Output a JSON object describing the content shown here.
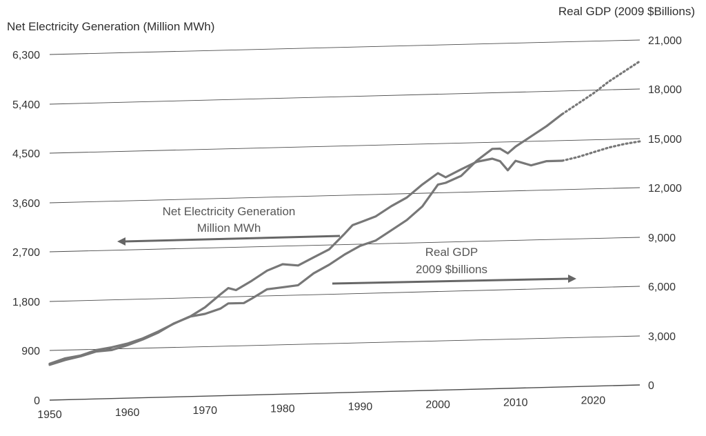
{
  "chart_data": {
    "type": "line",
    "x_ticks": [
      "1950",
      "1960",
      "1970",
      "1980",
      "1990",
      "2000",
      "2010",
      "2020"
    ],
    "left_axis": {
      "label": "Net Electricity Generation (Million MWh)",
      "ticks": [
        "0",
        "900",
        "1,800",
        "2,700",
        "3,600",
        "4,500",
        "5,400",
        "6,300"
      ],
      "ylim": [
        0,
        6300
      ]
    },
    "right_axis": {
      "label": "Real GDP (2009 $Billions)",
      "ticks": [
        "0",
        "3,000",
        "6,000",
        "9,000",
        "12,000",
        "15,000",
        "18,000",
        "21,000"
      ],
      "ylim": [
        0,
        21000
      ]
    },
    "xlim": [
      1950,
      2026
    ],
    "grid": true,
    "series": [
      {
        "name": "Net Electricity Generation Million MWh",
        "axis": "left",
        "color": "#777777",
        "points": [
          [
            1950,
            640
          ],
          [
            1952,
            720
          ],
          [
            1954,
            780
          ],
          [
            1956,
            860
          ],
          [
            1958,
            880
          ],
          [
            1960,
            960
          ],
          [
            1962,
            1060
          ],
          [
            1964,
            1180
          ],
          [
            1966,
            1340
          ],
          [
            1968,
            1450
          ],
          [
            1970,
            1620
          ],
          [
            1972,
            1850
          ],
          [
            1973,
            1960
          ],
          [
            1974,
            1920
          ],
          [
            1976,
            2080
          ],
          [
            1978,
            2260
          ],
          [
            1980,
            2370
          ],
          [
            1982,
            2340
          ],
          [
            1984,
            2480
          ],
          [
            1986,
            2620
          ],
          [
            1988,
            2900
          ],
          [
            1989,
            3050
          ],
          [
            1990,
            3100
          ],
          [
            1992,
            3200
          ],
          [
            1994,
            3380
          ],
          [
            1996,
            3530
          ],
          [
            1998,
            3760
          ],
          [
            2000,
            3960
          ],
          [
            2001,
            3880
          ],
          [
            2003,
            4020
          ],
          [
            2005,
            4150
          ],
          [
            2007,
            4200
          ],
          [
            2008,
            4150
          ],
          [
            2009,
            3980
          ],
          [
            2010,
            4150
          ],
          [
            2012,
            4060
          ],
          [
            2014,
            4130
          ],
          [
            2016,
            4130
          ]
        ],
        "projection": [
          [
            2016,
            4130
          ],
          [
            2018,
            4190
          ],
          [
            2020,
            4270
          ],
          [
            2022,
            4350
          ],
          [
            2024,
            4410
          ],
          [
            2026,
            4450
          ]
        ]
      },
      {
        "name": "Real GDP 2009 $billions",
        "axis": "right",
        "color": "#777777",
        "points": [
          [
            1950,
            2200
          ],
          [
            1952,
            2500
          ],
          [
            1954,
            2650
          ],
          [
            1956,
            2950
          ],
          [
            1958,
            3100
          ],
          [
            1960,
            3300
          ],
          [
            1962,
            3600
          ],
          [
            1964,
            4000
          ],
          [
            1966,
            4450
          ],
          [
            1968,
            4850
          ],
          [
            1970,
            5000
          ],
          [
            1972,
            5300
          ],
          [
            1973,
            5600
          ],
          [
            1975,
            5600
          ],
          [
            1976,
            5850
          ],
          [
            1978,
            6400
          ],
          [
            1980,
            6500
          ],
          [
            1982,
            6600
          ],
          [
            1984,
            7300
          ],
          [
            1986,
            7800
          ],
          [
            1988,
            8400
          ],
          [
            1990,
            8900
          ],
          [
            1992,
            9200
          ],
          [
            1994,
            9800
          ],
          [
            1996,
            10400
          ],
          [
            1998,
            11200
          ],
          [
            2000,
            12500
          ],
          [
            2001,
            12600
          ],
          [
            2003,
            13000
          ],
          [
            2005,
            13900
          ],
          [
            2007,
            14600
          ],
          [
            2008,
            14600
          ],
          [
            2009,
            14300
          ],
          [
            2010,
            14700
          ],
          [
            2012,
            15300
          ],
          [
            2014,
            15900
          ],
          [
            2016,
            16600
          ]
        ],
        "projection": [
          [
            2016,
            16600
          ],
          [
            2018,
            17200
          ],
          [
            2020,
            17800
          ],
          [
            2022,
            18500
          ],
          [
            2024,
            19100
          ],
          [
            2026,
            19700
          ]
        ]
      }
    ],
    "annotations": [
      {
        "lines": [
          "Net Electricity Generation",
          "Million MWh"
        ],
        "arrow": "left"
      },
      {
        "lines": [
          "Real GDP",
          "2009 $billions"
        ],
        "arrow": "right"
      }
    ]
  }
}
